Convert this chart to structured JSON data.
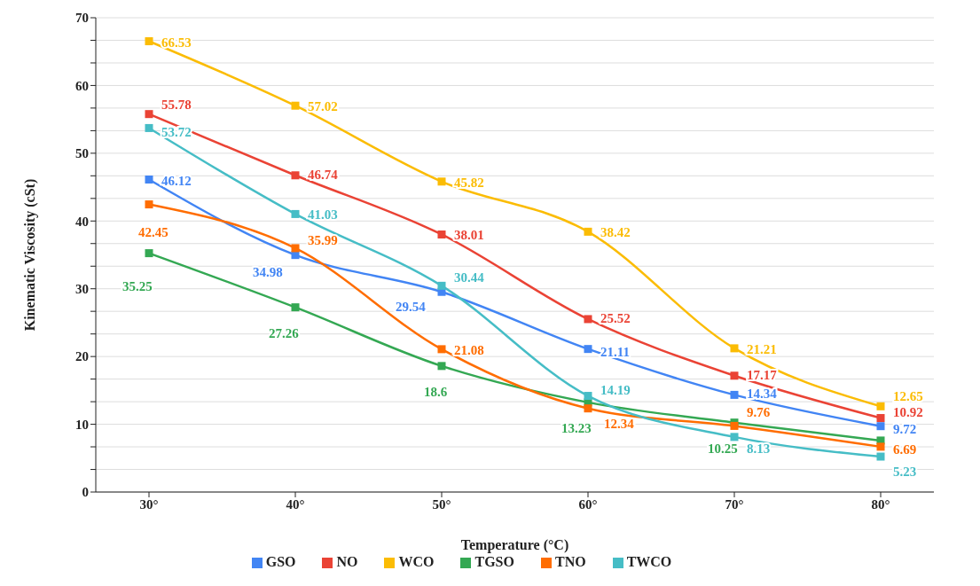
{
  "chart_data": {
    "type": "line",
    "xlabel": "Temperature (°C)",
    "ylabel": "Kinematic Viscosity (cSt)",
    "categories": [
      "30°",
      "40°",
      "50°",
      "60°",
      "70°",
      "80°"
    ],
    "series": [
      {
        "name": "GSO",
        "color": "#4285f4",
        "values": [
          46.12,
          34.98,
          29.54,
          21.11,
          14.34,
          9.72
        ],
        "value_labels": [
          "46.12",
          "34.98",
          "29.54",
          "21.11",
          "14.34",
          "9.72"
        ]
      },
      {
        "name": "NO",
        "color": "#ea4335",
        "values": [
          55.78,
          46.74,
          38.01,
          25.52,
          17.17,
          10.92
        ],
        "value_labels": [
          "55.78",
          "46.74",
          "38.01",
          "25.52",
          "17.17",
          "10.92"
        ]
      },
      {
        "name": "WCO",
        "color": "#fbbc04",
        "values": [
          66.53,
          57.02,
          45.82,
          38.42,
          21.21,
          12.65
        ],
        "value_labels": [
          "66.53",
          "57.02",
          "45.82",
          "38.42",
          "21.21",
          "12.65"
        ]
      },
      {
        "name": "TGSO",
        "color": "#34a853",
        "values": [
          35.25,
          27.26,
          18.6,
          13.23,
          10.25,
          7.6
        ],
        "value_labels": [
          "35.25",
          "27.26",
          "18.6",
          "13.23",
          "10.25",
          null
        ]
      },
      {
        "name": "TNO",
        "color": "#ff6d01",
        "values": [
          42.45,
          35.99,
          21.08,
          12.34,
          9.76,
          6.69
        ],
        "value_labels": [
          "42.45",
          "35.99",
          "21.08",
          "12.34",
          "9.76",
          "6.69"
        ]
      },
      {
        "name": "TWCO",
        "color": "#46bdc6",
        "values": [
          53.72,
          41.03,
          30.44,
          14.19,
          8.13,
          5.23
        ],
        "value_labels": [
          "53.72",
          "41.03",
          "30.44",
          "14.19",
          "8.13",
          "5.23"
        ]
      }
    ],
    "ylim": [
      0,
      70
    ],
    "yticks": [
      0,
      {
        "value": 3.33,
        "label": null
      },
      {
        "value": 6.67,
        "label": null
      },
      10,
      {
        "value": 13.33,
        "label": null
      },
      {
        "value": 16.67,
        "label": null
      },
      20,
      {
        "value": 23.33,
        "label": null
      },
      {
        "value": 26.67,
        "label": null
      },
      30,
      {
        "value": 33.33,
        "label": null
      },
      {
        "value": 36.67,
        "label": null
      },
      40,
      {
        "value": 43.33,
        "label": null
      },
      {
        "value": 46.67,
        "label": null
      },
      50,
      {
        "value": 53.33,
        "label": null
      },
      {
        "value": 56.67,
        "label": null
      },
      60,
      {
        "value": 63.33,
        "label": null
      },
      {
        "value": 66.67,
        "label": null
      },
      70
    ],
    "grid": "y",
    "legend": "bottom",
    "marker": "square",
    "line_style": "solid"
  }
}
